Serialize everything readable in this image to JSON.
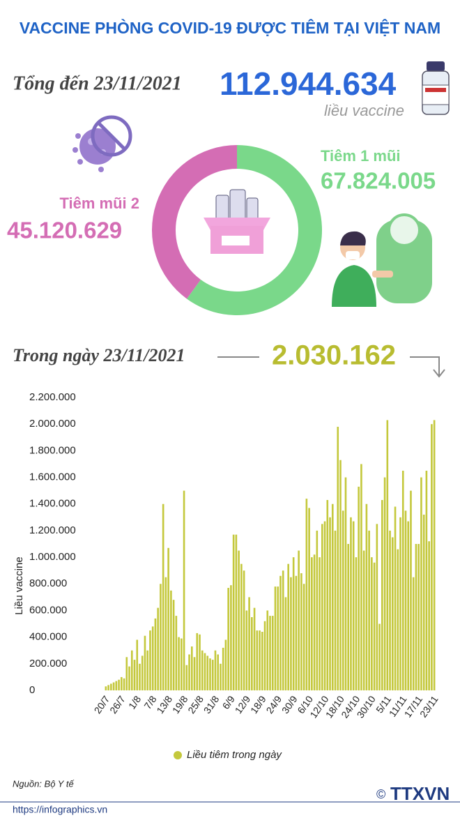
{
  "header": {
    "title": "VACCINE PHÒNG COVID-19 ĐƯỢC TIÊM TẠI VIỆT NAM",
    "total_label": "Tổng đến 23/11/2021",
    "total_value": "112.944.634",
    "total_unit": "liều vaccine",
    "day_label": "Trong ngày 23/11/2021",
    "day_value": "2.030.162"
  },
  "chart_data": [
    {
      "type": "pie",
      "donut": true,
      "categories": [
        "Tiêm 1 mũi",
        "Tiêm mũi 2"
      ],
      "values": [
        67824005,
        45120629
      ],
      "value_labels": [
        "67.824.005",
        "45.120.629"
      ],
      "colors": [
        "#7ad88a",
        "#d46db4"
      ]
    },
    {
      "type": "bar",
      "y_label": "Liều vaccine",
      "legend": "bottom",
      "categories": [
        "20/7",
        null,
        null,
        null,
        null,
        null,
        "26/7",
        null,
        null,
        null,
        null,
        null,
        "1/8",
        null,
        null,
        null,
        null,
        null,
        "7/8",
        null,
        null,
        null,
        null,
        null,
        "13/8",
        null,
        null,
        null,
        null,
        null,
        "19/8",
        null,
        null,
        null,
        null,
        null,
        "25/8",
        null,
        null,
        null,
        null,
        null,
        "31/8",
        null,
        null,
        null,
        null,
        null,
        "6/9",
        null,
        null,
        null,
        null,
        null,
        "12/9",
        null,
        null,
        null,
        null,
        null,
        "18/9",
        null,
        null,
        null,
        null,
        null,
        "24/9",
        null,
        null,
        null,
        null,
        null,
        "30/9",
        null,
        null,
        null,
        null,
        null,
        "6/10",
        null,
        null,
        null,
        null,
        null,
        "12/10",
        null,
        null,
        null,
        null,
        null,
        "18/10",
        null,
        null,
        null,
        null,
        null,
        "24/10",
        null,
        null,
        null,
        null,
        null,
        "30/10",
        null,
        null,
        null,
        null,
        null,
        "5/11",
        null,
        null,
        null,
        null,
        null,
        "11/11",
        null,
        null,
        null,
        null,
        null,
        "17/11",
        null,
        null,
        null,
        null,
        null,
        "23/11"
      ],
      "series": [
        {
          "name": "Liều tiêm trong ngày",
          "color": "#c4c83c",
          "values": [
            30000,
            40000,
            50000,
            60000,
            70000,
            80000,
            100000,
            90000,
            250000,
            180000,
            300000,
            230000,
            380000,
            200000,
            260000,
            410000,
            300000,
            450000,
            480000,
            540000,
            620000,
            800000,
            1400000,
            850000,
            1070000,
            750000,
            680000,
            560000,
            400000,
            390000,
            1500000,
            190000,
            270000,
            330000,
            250000,
            430000,
            420000,
            300000,
            280000,
            260000,
            240000,
            230000,
            300000,
            270000,
            200000,
            320000,
            380000,
            770000,
            790000,
            1170000,
            1170000,
            1050000,
            950000,
            900000,
            600000,
            700000,
            550000,
            620000,
            450000,
            450000,
            440000,
            520000,
            600000,
            560000,
            560000,
            780000,
            780000,
            860000,
            900000,
            700000,
            950000,
            850000,
            1000000,
            860000,
            1050000,
            880000,
            800000,
            1440000,
            1370000,
            1000000,
            1020000,
            1200000,
            1000000,
            1250000,
            1270000,
            1430000,
            1300000,
            1400000,
            1200000,
            1980000,
            1730000,
            1350000,
            1600000,
            1100000,
            1300000,
            1270000,
            1000000,
            1530000,
            1700000,
            1050000,
            1400000,
            1200000,
            1000000,
            960000,
            1250000,
            500000,
            1430000,
            1600000,
            2030000,
            1200000,
            1150000,
            1380000,
            1060000,
            1300000,
            1650000,
            1350000,
            1270000,
            1500000,
            850000,
            1100000,
            1100000,
            1600000,
            1320000,
            1650000,
            1120000,
            2000000,
            2030162
          ]
        }
      ],
      "ylim": [
        0,
        2200000
      ],
      "yticks": [
        0,
        {
          "value": 200000,
          "label": "200.000"
        },
        {
          "value": 400000,
          "label": "400.000"
        },
        {
          "value": 600000,
          "label": "600.000"
        },
        {
          "value": 800000,
          "label": "800.000"
        },
        {
          "value": 1000000,
          "label": "1.000.000"
        },
        {
          "value": 1200000,
          "label": "1.200.000"
        },
        {
          "value": 1400000,
          "label": "1.400.000"
        },
        {
          "value": 1600000,
          "label": "1.600.000"
        },
        {
          "value": 1800000,
          "label": "1.800.000"
        },
        {
          "value": 2000000,
          "label": "2.000.000"
        },
        {
          "value": 2200000,
          "label": "2.200.000"
        }
      ]
    }
  ],
  "footer": {
    "source": "Nguồn: Bộ Y tế",
    "url": "https://infographics.vn",
    "copyright": "©",
    "logo": "TTXVN"
  }
}
